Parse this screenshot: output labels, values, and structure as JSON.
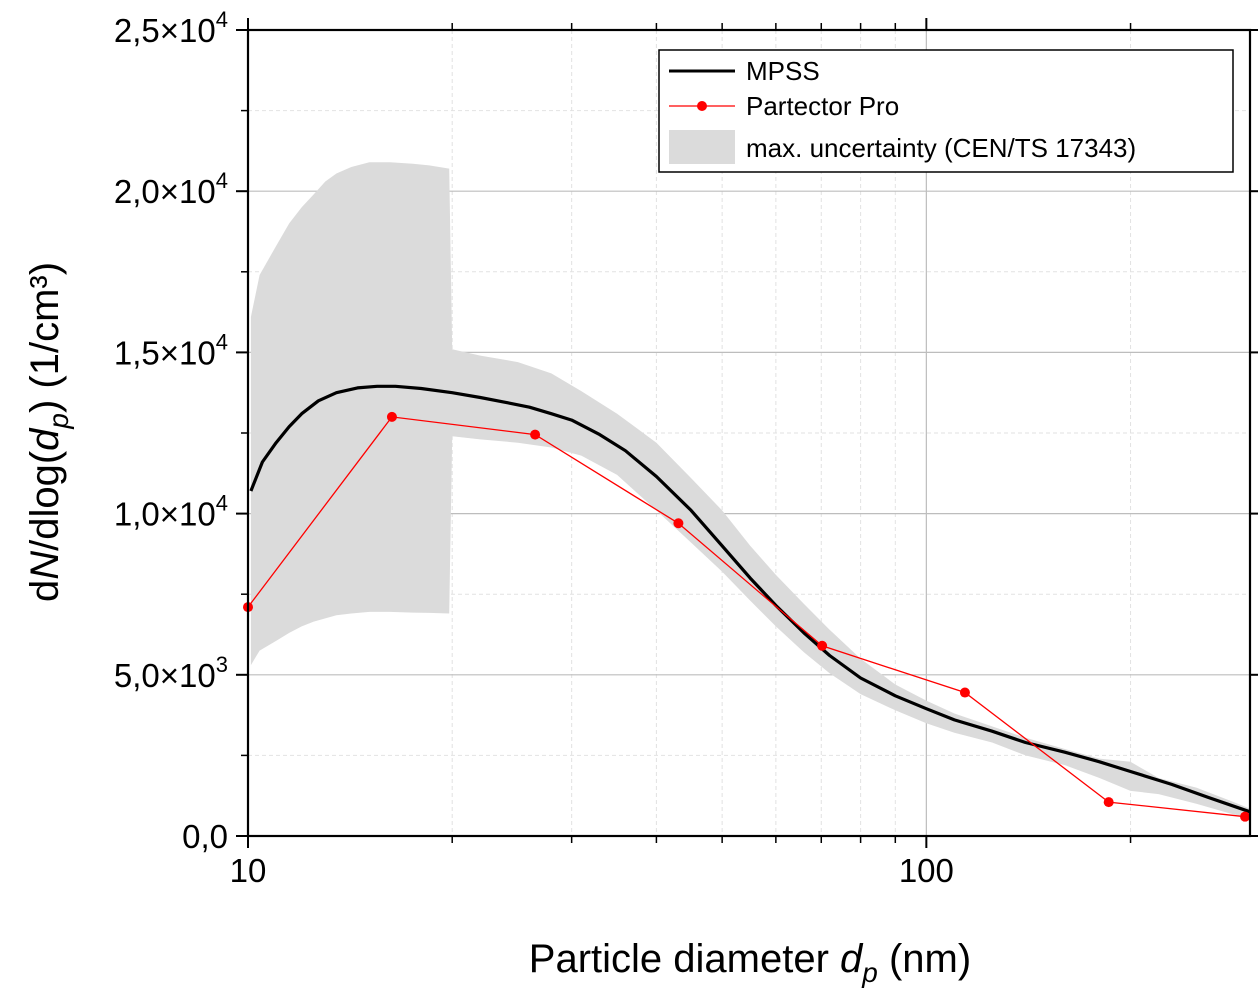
{
  "chart_data": {
    "type": "line",
    "x_scale": "log",
    "xlim": [
      10,
      300
    ],
    "ylim": [
      0,
      25000
    ],
    "x_ticks": [
      {
        "value": 10,
        "label": "10"
      },
      {
        "value": 100,
        "label": "100"
      }
    ],
    "y_ticks": [
      {
        "value": 0,
        "mantissa": "0,0",
        "exp": ""
      },
      {
        "value": 5000,
        "mantissa": "5,0×10",
        "exp": "3"
      },
      {
        "value": 10000,
        "mantissa": "1,0×10",
        "exp": "4"
      },
      {
        "value": 15000,
        "mantissa": "1,5×10",
        "exp": "4"
      },
      {
        "value": 20000,
        "mantissa": "2,0×10",
        "exp": "4"
      },
      {
        "value": 25000,
        "mantissa": "2,5×10",
        "exp": "4"
      }
    ],
    "xlabel": {
      "main": "Particle diameter ",
      "var": "d",
      "sub": "p",
      "unit": " (nm)"
    },
    "ylabel": {
      "pre": "d",
      "n": "N",
      "mid": "/dlog(",
      "var": "d",
      "sub": "p",
      "post": ")  (1/cm³)"
    },
    "grid": true,
    "legend_position": "top-right",
    "series": [
      {
        "name": "MPSS",
        "style": "line",
        "color": "#000000",
        "x": [
          10.1,
          10.5,
          11,
          11.5,
          12,
          12.7,
          13.5,
          14.5,
          15.5,
          16.5,
          18,
          20,
          22,
          24,
          26,
          28,
          30,
          33,
          36,
          40,
          45,
          50,
          55,
          60,
          66,
          72,
          80,
          90,
          100,
          110,
          125,
          140,
          160,
          180,
          200,
          230,
          260,
          300
        ],
        "y": [
          10700,
          11600,
          12200,
          12700,
          13100,
          13500,
          13750,
          13900,
          13950,
          13950,
          13880,
          13750,
          13600,
          13450,
          13300,
          13100,
          12900,
          12450,
          11950,
          11150,
          10100,
          9000,
          8000,
          7150,
          6300,
          5600,
          4900,
          4350,
          3950,
          3600,
          3250,
          2900,
          2600,
          2300,
          2000,
          1600,
          1200,
          750
        ]
      },
      {
        "name": "Partector Pro",
        "style": "line-marker",
        "color": "#ff0000",
        "x": [
          10,
          16.3,
          26.5,
          43.1,
          70.2,
          114,
          185.7,
          295
        ],
        "y": [
          7100,
          13000,
          12450,
          9700,
          5900,
          4450,
          1050,
          600
        ]
      },
      {
        "name": "max. uncertainty (CEN/TS 17343)",
        "style": "band",
        "color": "#dbdbdb",
        "x": [
          10.1,
          10.4,
          11,
          11.5,
          12,
          12.5,
          13,
          13.5,
          14.2,
          15.1,
          16.2,
          17.5,
          18.5,
          19.8,
          20,
          22,
          25,
          28,
          31,
          35,
          40,
          45,
          50,
          55,
          60,
          66,
          72,
          80,
          90,
          100,
          110,
          125,
          140,
          160,
          180,
          200,
          220,
          250,
          280,
          300
        ],
        "upper": [
          16100,
          17400,
          18300,
          19000,
          19500,
          19900,
          20300,
          20550,
          20750,
          20900,
          20900,
          20850,
          20800,
          20700,
          15100,
          14900,
          14700,
          14350,
          13800,
          13100,
          12200,
          11100,
          10100,
          9000,
          8100,
          7200,
          6400,
          5500,
          4700,
          4200,
          3800,
          3400,
          3050,
          2700,
          2400,
          2300,
          1800,
          1500,
          1100,
          850
        ],
        "lower": [
          5300,
          5750,
          6050,
          6300,
          6500,
          6650,
          6750,
          6850,
          6900,
          6950,
          6950,
          6930,
          6920,
          6900,
          12400,
          12300,
          12200,
          12050,
          11800,
          11200,
          10100,
          9100,
          8200,
          7300,
          6500,
          5700,
          5050,
          4400,
          3900,
          3500,
          3200,
          2900,
          2500,
          2200,
          1800,
          1400,
          1300,
          1000,
          700,
          550
        ]
      }
    ]
  }
}
